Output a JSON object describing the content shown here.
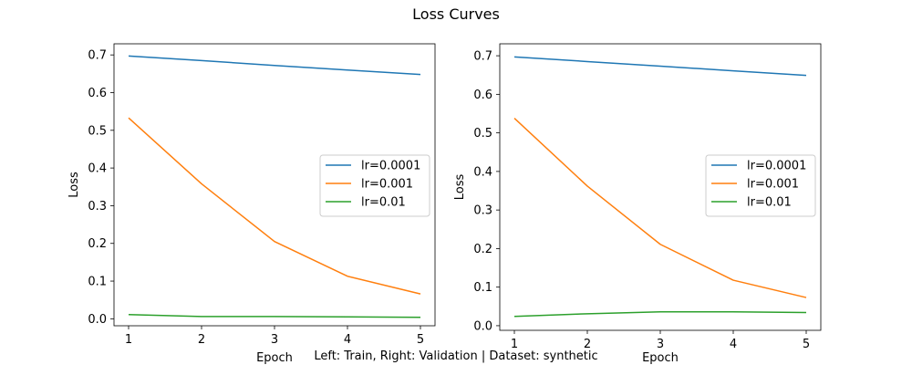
{
  "figure": {
    "title": "Loss Curves",
    "caption": "Left: Train, Right: Validation | Dataset: synthetic"
  },
  "chart_data": [
    {
      "type": "line",
      "xlabel": "Epoch",
      "ylabel": "Loss",
      "xlim": [
        0.8,
        5.2
      ],
      "ylim": [
        -0.0185,
        0.7295
      ],
      "xticks": [
        1,
        2,
        3,
        4,
        5
      ],
      "yticks": [
        0.0,
        0.1,
        0.2,
        0.3,
        0.4,
        0.5,
        0.6,
        0.7
      ],
      "ytick_labels": [
        "0.0",
        "0.1",
        "0.2",
        "0.3",
        "0.4",
        "0.5",
        "0.6",
        "0.7"
      ],
      "grid": false,
      "legend": "center-right",
      "x": [
        1,
        2,
        3,
        4,
        5
      ],
      "series": [
        {
          "name": "lr=0.0001",
          "color": "#1f77b4",
          "values": [
            0.697,
            0.685,
            0.672,
            0.66,
            0.648
          ]
        },
        {
          "name": "lr=0.001",
          "color": "#ff7f0e",
          "values": [
            0.533,
            0.358,
            0.205,
            0.113,
            0.066
          ]
        },
        {
          "name": "lr=0.01",
          "color": "#2ca02c",
          "values": [
            0.011,
            0.006,
            0.006,
            0.005,
            0.004
          ]
        }
      ]
    },
    {
      "type": "line",
      "xlabel": "Epoch",
      "ylabel": "Loss",
      "xlim": [
        0.8,
        5.2
      ],
      "ylim": [
        -0.012,
        0.731
      ],
      "xticks": [
        1,
        2,
        3,
        4,
        5
      ],
      "yticks": [
        0.0,
        0.1,
        0.2,
        0.3,
        0.4,
        0.5,
        0.6,
        0.7
      ],
      "ytick_labels": [
        "0.0",
        "0.1",
        "0.2",
        "0.3",
        "0.4",
        "0.5",
        "0.6",
        "0.7"
      ],
      "grid": false,
      "legend": "center-right",
      "x": [
        1,
        2,
        3,
        4,
        5
      ],
      "series": [
        {
          "name": "lr=0.0001",
          "color": "#1f77b4",
          "values": [
            0.697,
            0.685,
            0.673,
            0.661,
            0.649
          ]
        },
        {
          "name": "lr=0.001",
          "color": "#ff7f0e",
          "values": [
            0.538,
            0.362,
            0.211,
            0.118,
            0.073
          ]
        },
        {
          "name": "lr=0.01",
          "color": "#2ca02c",
          "values": [
            0.024,
            0.031,
            0.036,
            0.036,
            0.034
          ]
        }
      ]
    }
  ]
}
